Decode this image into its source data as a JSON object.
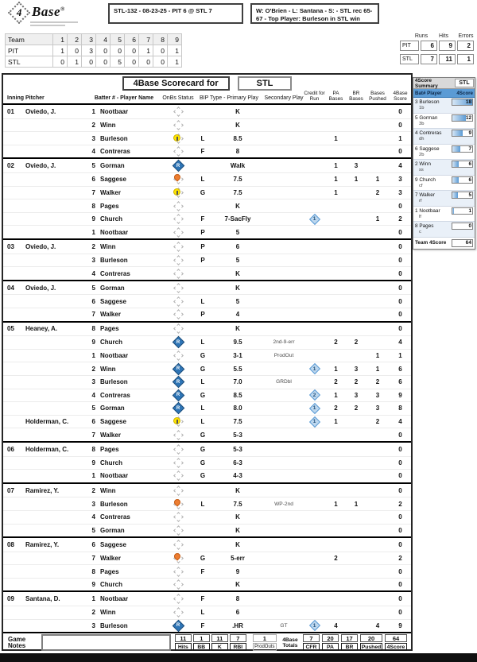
{
  "brand": {
    "four": "4",
    "base": "Base",
    "reg": "®"
  },
  "top_info": {
    "game_line": "STL-132 - 08-23-25 - PIT 6 @ STL 7",
    "result_line": "W: O'Brien - L: Santana - S:  - STL rec 65-67 - Top Player: Burleson in STL win"
  },
  "linescore": {
    "team_header": "Team",
    "innings": [
      "1",
      "2",
      "3",
      "4",
      "5",
      "6",
      "7",
      "8",
      "9"
    ],
    "rows": [
      {
        "team": "PIT",
        "scores": [
          "1",
          "0",
          "3",
          "0",
          "0",
          "0",
          "1",
          "0",
          "1"
        ]
      },
      {
        "team": "STL",
        "scores": [
          "0",
          "1",
          "0",
          "0",
          "5",
          "0",
          "0",
          "0",
          "1"
        ]
      }
    ]
  },
  "rhe": {
    "headers": [
      "Runs",
      "Hits",
      "Errors"
    ],
    "rows": [
      {
        "team": "PIT",
        "values": [
          "6",
          "9",
          "2"
        ]
      },
      {
        "team": "STL",
        "values": [
          "7",
          "11",
          "1"
        ]
      }
    ]
  },
  "scorecard": {
    "title": "4Base Scorecard for",
    "team": "STL",
    "col_headers": {
      "inning": "Inning",
      "pitcher": "Pitcher",
      "batter": "Batter # - Player Name",
      "onbs": "OnBs Status",
      "bip": "BIP Type - Primary Play",
      "secondary": "Secondary Play",
      "cfr": "Credit for Run",
      "pa": "PA Bases",
      "br": "BR Bases",
      "pushed": "Bases Pushed",
      "score": "4Base Score"
    },
    "innings": [
      {
        "num": "01",
        "rows": [
          {
            "p": "Oviedo, J.",
            "n": "1",
            "b": "Nootbaar",
            "st": "out",
            "t": "",
            "pr": "K",
            "se": "",
            "c": "",
            "pa": "",
            "br": "",
            "pu": "",
            "sc": "0"
          },
          {
            "p": "",
            "n": "2",
            "b": "Winn",
            "st": "out",
            "t": "",
            "pr": "K",
            "se": "",
            "c": "",
            "pa": "",
            "br": "",
            "pu": "",
            "sc": "0"
          },
          {
            "p": "",
            "n": "3",
            "b": "Burleson",
            "st": "lob",
            "t": "L",
            "pr": "8.5",
            "se": "",
            "c": "",
            "pa": "1",
            "br": "",
            "pu": "",
            "sc": "1"
          },
          {
            "p": "",
            "n": "4",
            "b": "Contreras",
            "st": "out",
            "t": "F",
            "pr": "8",
            "se": "",
            "c": "",
            "pa": "",
            "br": "",
            "pu": "",
            "sc": "0"
          }
        ]
      },
      {
        "num": "02",
        "rows": [
          {
            "p": "Oviedo, J.",
            "n": "5",
            "b": "Gorman",
            "st": "scored",
            "t": "",
            "pr": "Walk",
            "se": "",
            "c": "",
            "pa": "1",
            "br": "3",
            "pu": "",
            "sc": "4"
          },
          {
            "p": "",
            "n": "6",
            "b": "Saggese",
            "st": "runner",
            "t": "L",
            "pr": "7.5",
            "se": "",
            "c": "",
            "pa": "1",
            "br": "1",
            "pu": "1",
            "sc": "3"
          },
          {
            "p": "",
            "n": "7",
            "b": "Walker",
            "st": "lob",
            "t": "G",
            "pr": "7.5",
            "se": "",
            "c": "",
            "pa": "1",
            "br": "",
            "pu": "2",
            "sc": "3"
          },
          {
            "p": "",
            "n": "8",
            "b": "Pages",
            "st": "out",
            "t": "",
            "pr": "K",
            "se": "",
            "c": "",
            "pa": "",
            "br": "",
            "pu": "",
            "sc": "0"
          },
          {
            "p": "",
            "n": "9",
            "b": "Church",
            "st": "out",
            "t": "F",
            "pr": "7-SacFly",
            "se": "",
            "c": "1",
            "pa": "",
            "br": "",
            "pu": "1",
            "sc": "2"
          },
          {
            "p": "",
            "n": "1",
            "b": "Nootbaar",
            "st": "out",
            "t": "P",
            "pr": "5",
            "se": "",
            "c": "",
            "pa": "",
            "br": "",
            "pu": "",
            "sc": "0"
          }
        ]
      },
      {
        "num": "03",
        "rows": [
          {
            "p": "Oviedo, J.",
            "n": "2",
            "b": "Winn",
            "st": "out",
            "t": "P",
            "pr": "6",
            "se": "",
            "c": "",
            "pa": "",
            "br": "",
            "pu": "",
            "sc": "0"
          },
          {
            "p": "",
            "n": "3",
            "b": "Burleson",
            "st": "out",
            "t": "P",
            "pr": "5",
            "se": "",
            "c": "",
            "pa": "",
            "br": "",
            "pu": "",
            "sc": "0"
          },
          {
            "p": "",
            "n": "4",
            "b": "Contreras",
            "st": "out",
            "t": "",
            "pr": "K",
            "se": "",
            "c": "",
            "pa": "",
            "br": "",
            "pu": "",
            "sc": "0"
          }
        ]
      },
      {
        "num": "04",
        "rows": [
          {
            "p": "Oviedo, J.",
            "n": "5",
            "b": "Gorman",
            "st": "out",
            "t": "",
            "pr": "K",
            "se": "",
            "c": "",
            "pa": "",
            "br": "",
            "pu": "",
            "sc": "0"
          },
          {
            "p": "",
            "n": "6",
            "b": "Saggese",
            "st": "out",
            "t": "L",
            "pr": "5",
            "se": "",
            "c": "",
            "pa": "",
            "br": "",
            "pu": "",
            "sc": "0"
          },
          {
            "p": "",
            "n": "7",
            "b": "Walker",
            "st": "out",
            "t": "P",
            "pr": "4",
            "se": "",
            "c": "",
            "pa": "",
            "br": "",
            "pu": "",
            "sc": "0"
          }
        ]
      },
      {
        "num": "05",
        "rows": [
          {
            "p": "Heaney, A.",
            "n": "8",
            "b": "Pages",
            "st": "out",
            "t": "",
            "pr": "K",
            "se": "",
            "c": "",
            "pa": "",
            "br": "",
            "pu": "",
            "sc": "0"
          },
          {
            "p": "",
            "n": "9",
            "b": "Church",
            "st": "scored",
            "t": "L",
            "pr": "9.5",
            "se": "2nd-9-err",
            "c": "",
            "pa": "2",
            "br": "2",
            "pu": "",
            "sc": "4"
          },
          {
            "p": "",
            "n": "1",
            "b": "Nootbaar",
            "st": "out",
            "t": "G",
            "pr": "3-1",
            "se": "ProdOut",
            "c": "",
            "pa": "",
            "br": "",
            "pu": "1",
            "sc": "1"
          },
          {
            "p": "",
            "n": "2",
            "b": "Winn",
            "st": "scored",
            "t": "G",
            "pr": "5.5",
            "se": "",
            "c": "1",
            "pa": "1",
            "br": "3",
            "pu": "1",
            "sc": "6"
          },
          {
            "p": "",
            "n": "3",
            "b": "Burleson",
            "st": "scored",
            "t": "L",
            "pr": "7.0",
            "se": "GRDbl",
            "c": "",
            "pa": "2",
            "br": "2",
            "pu": "2",
            "sc": "6"
          },
          {
            "p": "",
            "n": "4",
            "b": "Contreras",
            "st": "scored",
            "t": "G",
            "pr": "8.5",
            "se": "",
            "c": "2",
            "pa": "1",
            "br": "3",
            "pu": "3",
            "sc": "9"
          },
          {
            "p": "",
            "n": "5",
            "b": "Gorman",
            "st": "scored",
            "t": "L",
            "pr": "8.0",
            "se": "",
            "c": "1",
            "pa": "2",
            "br": "2",
            "pu": "3",
            "sc": "8"
          },
          {
            "p": "Holderman, C.",
            "n": "6",
            "b": "Saggese",
            "st": "lob",
            "t": "L",
            "pr": "7.5",
            "se": "",
            "c": "1",
            "pa": "1",
            "br": "",
            "pu": "2",
            "sc": "4"
          },
          {
            "p": "",
            "n": "7",
            "b": "Walker",
            "st": "out",
            "t": "G",
            "pr": "5-3",
            "se": "",
            "c": "",
            "pa": "",
            "br": "",
            "pu": "",
            "sc": "0"
          }
        ]
      },
      {
        "num": "06",
        "rows": [
          {
            "p": "Holderman, C.",
            "n": "8",
            "b": "Pages",
            "st": "out",
            "t": "G",
            "pr": "5-3",
            "se": "",
            "c": "",
            "pa": "",
            "br": "",
            "pu": "",
            "sc": "0"
          },
          {
            "p": "",
            "n": "9",
            "b": "Church",
            "st": "out",
            "t": "G",
            "pr": "6-3",
            "se": "",
            "c": "",
            "pa": "",
            "br": "",
            "pu": "",
            "sc": "0"
          },
          {
            "p": "",
            "n": "1",
            "b": "Nootbaar",
            "st": "out",
            "t": "G",
            "pr": "4-3",
            "se": "",
            "c": "",
            "pa": "",
            "br": "",
            "pu": "",
            "sc": "0"
          }
        ]
      },
      {
        "num": "07",
        "rows": [
          {
            "p": "Ramirez, Y.",
            "n": "2",
            "b": "Winn",
            "st": "out",
            "t": "",
            "pr": "K",
            "se": "",
            "c": "",
            "pa": "",
            "br": "",
            "pu": "",
            "sc": "0"
          },
          {
            "p": "",
            "n": "3",
            "b": "Burleson",
            "st": "runner",
            "t": "L",
            "pr": "7.5",
            "se": "WP-2nd",
            "c": "",
            "pa": "1",
            "br": "1",
            "pu": "",
            "sc": "2"
          },
          {
            "p": "",
            "n": "4",
            "b": "Contreras",
            "st": "out",
            "t": "",
            "pr": "K",
            "se": "",
            "c": "",
            "pa": "",
            "br": "",
            "pu": "",
            "sc": "0"
          },
          {
            "p": "",
            "n": "5",
            "b": "Gorman",
            "st": "out",
            "t": "",
            "pr": "K",
            "se": "",
            "c": "",
            "pa": "",
            "br": "",
            "pu": "",
            "sc": "0"
          }
        ]
      },
      {
        "num": "08",
        "rows": [
          {
            "p": "Ramirez, Y.",
            "n": "6",
            "b": "Saggese",
            "st": "out",
            "t": "",
            "pr": "K",
            "se": "",
            "c": "",
            "pa": "",
            "br": "",
            "pu": "",
            "sc": "0"
          },
          {
            "p": "",
            "n": "7",
            "b": "Walker",
            "st": "runner",
            "t": "G",
            "pr": "5-err",
            "se": "",
            "c": "",
            "pa": "2",
            "br": "",
            "pu": "",
            "sc": "2"
          },
          {
            "p": "",
            "n": "8",
            "b": "Pages",
            "st": "out",
            "t": "F",
            "pr": "9",
            "se": "",
            "c": "",
            "pa": "",
            "br": "",
            "pu": "",
            "sc": "0"
          },
          {
            "p": "",
            "n": "9",
            "b": "Church",
            "st": "out",
            "t": "",
            "pr": "K",
            "se": "",
            "c": "",
            "pa": "",
            "br": "",
            "pu": "",
            "sc": "0"
          }
        ]
      },
      {
        "num": "09",
        "rows": [
          {
            "p": "Santana, D.",
            "n": "1",
            "b": "Nootbaar",
            "st": "out",
            "t": "F",
            "pr": "8",
            "se": "",
            "c": "",
            "pa": "",
            "br": "",
            "pu": "",
            "sc": "0"
          },
          {
            "p": "",
            "n": "2",
            "b": "Winn",
            "st": "out",
            "t": "L",
            "pr": "6",
            "se": "",
            "c": "",
            "pa": "",
            "br": "",
            "pu": "",
            "sc": "0"
          },
          {
            "p": "",
            "n": "3",
            "b": "Burleson",
            "st": "scored",
            "t": "F",
            "pr": ".HR",
            "se": "GT",
            "c": "1",
            "pa": "4",
            "br": "",
            "pu": "4",
            "sc": "9"
          }
        ]
      }
    ]
  },
  "footer": {
    "notes_label": "Game Notes",
    "totals_label": "4Base Totals",
    "left_totals": [
      {
        "value": "11",
        "label": "Hits"
      },
      {
        "value": "1",
        "label": "BB"
      },
      {
        "value": "11",
        "label": "K"
      },
      {
        "value": "7",
        "label": "RBI"
      }
    ],
    "prodouts": {
      "value": "1",
      "label": "ProdOuts"
    },
    "right_totals": [
      {
        "value": "7",
        "label": "CFR"
      },
      {
        "value": "20",
        "label": "PA"
      },
      {
        "value": "17",
        "label": "BR"
      },
      {
        "value": "20",
        "label": "Pushed"
      },
      {
        "value": "64",
        "label": "4Score"
      }
    ]
  },
  "sidebar": {
    "title": "4Score Summary",
    "team": "STL",
    "col_player": "Bat# Player",
    "col_score": "4Score",
    "max_score": 18,
    "players": [
      {
        "num": "3",
        "name": "Burleson",
        "pos": "1b",
        "score": 18
      },
      {
        "num": "5",
        "name": "Gorman",
        "pos": "3b",
        "score": 12
      },
      {
        "num": "4",
        "name": "Contreras",
        "pos": "dh",
        "score": 9
      },
      {
        "num": "6",
        "name": "Saggese",
        "pos": "2b",
        "score": 7
      },
      {
        "num": "2",
        "name": "Winn",
        "pos": "ss",
        "score": 6
      },
      {
        "num": "9",
        "name": "Church",
        "pos": "cf",
        "score": 6
      },
      {
        "num": "7",
        "name": "Walker",
        "pos": "rf",
        "score": 5
      },
      {
        "num": "1",
        "name": "Nootbaar",
        "pos": "lf",
        "score": 1
      },
      {
        "num": "8",
        "name": "Pages",
        "pos": "c",
        "score": 0
      }
    ],
    "team_row": {
      "label": "Team 4Score",
      "score": "64"
    }
  }
}
